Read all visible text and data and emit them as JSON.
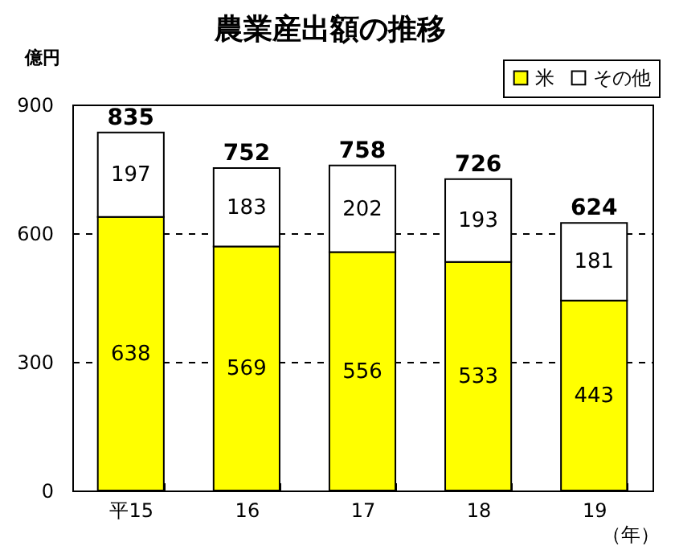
{
  "chart_data": {
    "type": "bar",
    "title": "農業産出額の推移",
    "ylabel": "億円",
    "xlabel": "（年）",
    "categories": [
      "平15",
      "16",
      "17",
      "18",
      "19"
    ],
    "stacked": true,
    "series": [
      {
        "name": "米",
        "color": "#ffff00",
        "values": [
          638,
          569,
          556,
          533,
          443
        ]
      },
      {
        "name": "その他",
        "color": "#ffffff",
        "values": [
          197,
          183,
          202,
          193,
          181
        ]
      }
    ],
    "totals": [
      "835",
      "752",
      "758",
      "726",
      "624"
    ],
    "data_labels": true,
    "ylim": [
      0,
      900
    ],
    "yticks": [
      0,
      300,
      600,
      900
    ],
    "grid": "y",
    "legend": "top right"
  }
}
